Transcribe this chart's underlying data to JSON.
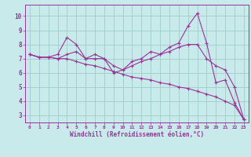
{
  "xlabel": "Windchill (Refroidissement éolien,°C)",
  "xlim": [
    -0.5,
    23.5
  ],
  "ylim": [
    2.5,
    10.8
  ],
  "yticks": [
    3,
    4,
    5,
    6,
    7,
    8,
    9,
    10
  ],
  "xticks": [
    0,
    1,
    2,
    3,
    4,
    5,
    6,
    7,
    8,
    9,
    10,
    11,
    12,
    13,
    14,
    15,
    16,
    17,
    18,
    19,
    20,
    21,
    22,
    23
  ],
  "bg_color": "#c8eaea",
  "grid_color": "#a0cccc",
  "line_color": "#993399",
  "line_width": 0.8,
  "marker": "+",
  "marker_size": 3.5,
  "marker_lw": 0.8,
  "series": [
    [
      7.3,
      7.1,
      7.1,
      7.3,
      8.5,
      8.0,
      7.0,
      7.3,
      7.0,
      6.0,
      6.2,
      6.8,
      7.0,
      7.5,
      7.3,
      7.8,
      8.1,
      9.3,
      10.2,
      8.1,
      5.3,
      5.5,
      3.9,
      2.7
    ],
    [
      7.3,
      7.1,
      7.1,
      7.0,
      7.3,
      7.5,
      7.0,
      7.0,
      7.0,
      6.5,
      6.2,
      6.5,
      6.8,
      7.0,
      7.3,
      7.5,
      7.8,
      8.0,
      8.0,
      7.0,
      6.5,
      6.2,
      5.0,
      2.7
    ],
    [
      7.3,
      7.1,
      7.1,
      7.0,
      7.0,
      6.8,
      6.6,
      6.5,
      6.3,
      6.1,
      5.9,
      5.7,
      5.6,
      5.5,
      5.3,
      5.2,
      5.0,
      4.9,
      4.7,
      4.5,
      4.3,
      4.0,
      3.7,
      2.7
    ]
  ]
}
